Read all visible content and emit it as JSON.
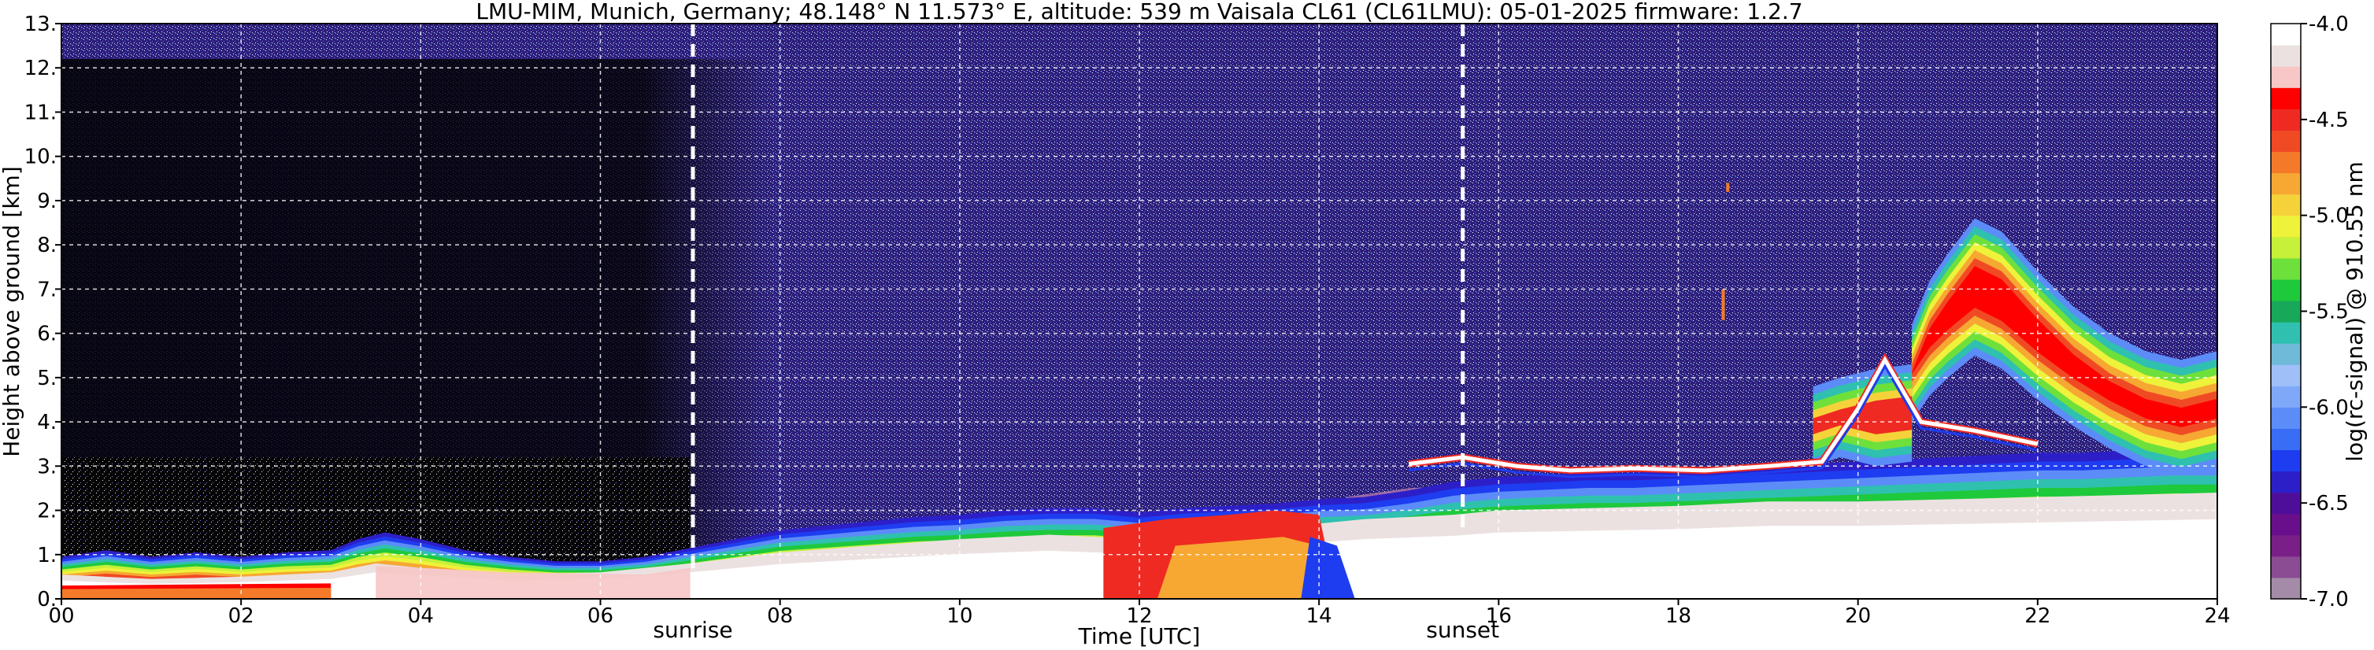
{
  "chart_data": {
    "type": "heatmap",
    "title": "LMU-MIM, Munich, Germany; 48.148° N 11.573° E, altitude: 539 m    Vaisala CL61 (CL61LMU): 05-01-2025    firmware: 1.2.7",
    "xlabel": "Time [UTC]",
    "ylabel": "Height above ground [km]",
    "colorbar_label": "log(rc-signal) @ 910.55 nm",
    "xlim": [
      0,
      24
    ],
    "ylim": [
      0,
      13
    ],
    "clim": [
      -7.0,
      -4.0
    ],
    "x_ticks": [
      0,
      2,
      4,
      6,
      8,
      10,
      12,
      14,
      16,
      18,
      20,
      22,
      24
    ],
    "x_tick_labels": [
      "00",
      "02",
      "04",
      "06",
      "08",
      "10",
      "12",
      "14",
      "16",
      "18",
      "20",
      "22",
      "24"
    ],
    "y_ticks": [
      0,
      1,
      2,
      3,
      4,
      5,
      6,
      7,
      8,
      9,
      10,
      11,
      12,
      13
    ],
    "y_tick_labels": [
      "0.",
      "1.",
      "2.",
      "3.",
      "4.",
      "5.",
      "6.",
      "7.",
      "8.",
      "9.",
      "10.",
      "11.",
      "12.",
      "13."
    ],
    "colorbar_ticks": [
      -7.0,
      -6.5,
      -6.0,
      -5.5,
      -5.0,
      -4.5,
      -4.0
    ],
    "colorbar_tick_labels": [
      "-7.0",
      "-6.5",
      "-6.0",
      "-5.5",
      "-5.0",
      "-4.5",
      "-4.0"
    ],
    "grid": true,
    "events": [
      {
        "label": "sunrise",
        "time": 7.03
      },
      {
        "label": "sunset",
        "time": 15.6
      }
    ],
    "colors": [
      "#a48ba8",
      "#8b4c94",
      "#7a1f87",
      "#6a0f8c",
      "#4f0e9a",
      "#2d1fc8",
      "#1e3cf0",
      "#3a6df5",
      "#5c8cf7",
      "#7fa9f8",
      "#9fbff8",
      "#6fb9d9",
      "#2fc0b0",
      "#18a85a",
      "#1fc93c",
      "#6ee03c",
      "#c6f03a",
      "#eef23a",
      "#f6d23a",
      "#f6a832",
      "#f47a2a",
      "#f04a24",
      "#ee2a22",
      "#ff0000",
      "#f7c7c7",
      "#ece1e1",
      "#ffffff"
    ],
    "layers": {
      "noise_lower_max_km": 3.2,
      "noise_upper_from_km": 2.7,
      "boundary_layer_top": [
        [
          0.0,
          0.95
        ],
        [
          0.5,
          1.1
        ],
        [
          1.0,
          0.95
        ],
        [
          1.5,
          1.05
        ],
        [
          2.0,
          0.95
        ],
        [
          2.5,
          1.05
        ],
        [
          3.0,
          1.1
        ],
        [
          3.3,
          1.35
        ],
        [
          3.6,
          1.5
        ],
        [
          4.0,
          1.35
        ],
        [
          4.5,
          1.1
        ],
        [
          5.0,
          0.95
        ],
        [
          5.5,
          0.85
        ],
        [
          6.0,
          0.85
        ],
        [
          6.5,
          0.95
        ],
        [
          7.0,
          1.15
        ],
        [
          7.5,
          1.35
        ],
        [
          8.0,
          1.55
        ],
        [
          8.5,
          1.65
        ],
        [
          9.0,
          1.75
        ],
        [
          9.5,
          1.85
        ],
        [
          10.0,
          1.9
        ],
        [
          10.5,
          2.0
        ],
        [
          11.0,
          2.05
        ],
        [
          11.5,
          2.05
        ],
        [
          12.0,
          1.95
        ],
        [
          12.5,
          2.05
        ],
        [
          13.0,
          2.1
        ],
        [
          13.5,
          2.15
        ],
        [
          14.0,
          2.25
        ],
        [
          14.5,
          2.3
        ],
        [
          15.0,
          2.45
        ],
        [
          15.5,
          2.65
        ],
        [
          16.0,
          2.75
        ],
        [
          16.5,
          2.8
        ],
        [
          17.0,
          2.85
        ],
        [
          17.5,
          2.85
        ],
        [
          18.0,
          2.9
        ],
        [
          18.5,
          2.95
        ],
        [
          19.0,
          3.0
        ],
        [
          19.5,
          3.05
        ],
        [
          20.0,
          3.1
        ],
        [
          20.5,
          3.15
        ],
        [
          21.0,
          3.2
        ],
        [
          21.5,
          3.25
        ],
        [
          22.0,
          3.3
        ],
        [
          22.5,
          3.3
        ],
        [
          23.0,
          3.35
        ],
        [
          23.5,
          3.4
        ],
        [
          24.0,
          3.4
        ]
      ],
      "aerosol_core_top": [
        [
          0.0,
          0.55
        ],
        [
          1.0,
          0.45
        ],
        [
          2.0,
          0.5
        ],
        [
          3.0,
          0.6
        ],
        [
          3.5,
          0.8
        ],
        [
          4.0,
          0.7
        ],
        [
          5.0,
          0.55
        ],
        [
          6.0,
          0.6
        ],
        [
          7.0,
          0.8
        ],
        [
          8.0,
          1.05
        ],
        [
          9.0,
          1.2
        ],
        [
          10.0,
          1.35
        ],
        [
          11.0,
          1.45
        ],
        [
          12.0,
          1.35
        ],
        [
          13.0,
          1.5
        ],
        [
          14.0,
          1.7
        ],
        [
          14.5,
          1.8
        ],
        [
          15.0,
          1.85
        ],
        [
          15.5,
          1.9
        ],
        [
          16.0,
          2.0
        ],
        [
          17.0,
          2.05
        ],
        [
          18.0,
          2.1
        ],
        [
          19.0,
          2.2
        ],
        [
          20.0,
          2.2
        ],
        [
          21.0,
          2.25
        ],
        [
          22.0,
          2.3
        ],
        [
          23.0,
          2.35
        ],
        [
          24.0,
          2.4
        ]
      ],
      "cirrus_band": [
        [
          20.6,
          4.0,
          6.2
        ],
        [
          20.8,
          4.6,
          7.2
        ],
        [
          21.0,
          5.0,
          7.8
        ],
        [
          21.3,
          5.5,
          8.6
        ],
        [
          21.6,
          5.2,
          8.3
        ],
        [
          22.0,
          4.5,
          7.4
        ],
        [
          22.4,
          3.9,
          6.6
        ],
        [
          22.8,
          3.4,
          6.0
        ],
        [
          23.2,
          3.0,
          5.6
        ],
        [
          23.6,
          2.8,
          5.4
        ],
        [
          24.0,
          3.0,
          5.6
        ]
      ],
      "lower_cloud_band": [
        [
          19.5,
          3.0,
          4.8
        ],
        [
          19.8,
          3.2,
          5.0
        ],
        [
          20.2,
          3.0,
          5.2
        ],
        [
          20.6,
          3.1,
          5.3
        ]
      ],
      "bright_streak": [
        [
          15.0,
          3.05
        ],
        [
          15.6,
          3.2
        ],
        [
          16.2,
          3.0
        ],
        [
          16.8,
          2.9
        ],
        [
          17.5,
          2.95
        ],
        [
          18.3,
          2.9
        ],
        [
          19.0,
          3.0
        ],
        [
          19.6,
          3.1
        ],
        [
          20.0,
          4.3
        ],
        [
          20.3,
          5.4
        ],
        [
          20.7,
          4.0
        ],
        [
          21.3,
          3.8
        ],
        [
          22.0,
          3.5
        ]
      ]
    }
  }
}
